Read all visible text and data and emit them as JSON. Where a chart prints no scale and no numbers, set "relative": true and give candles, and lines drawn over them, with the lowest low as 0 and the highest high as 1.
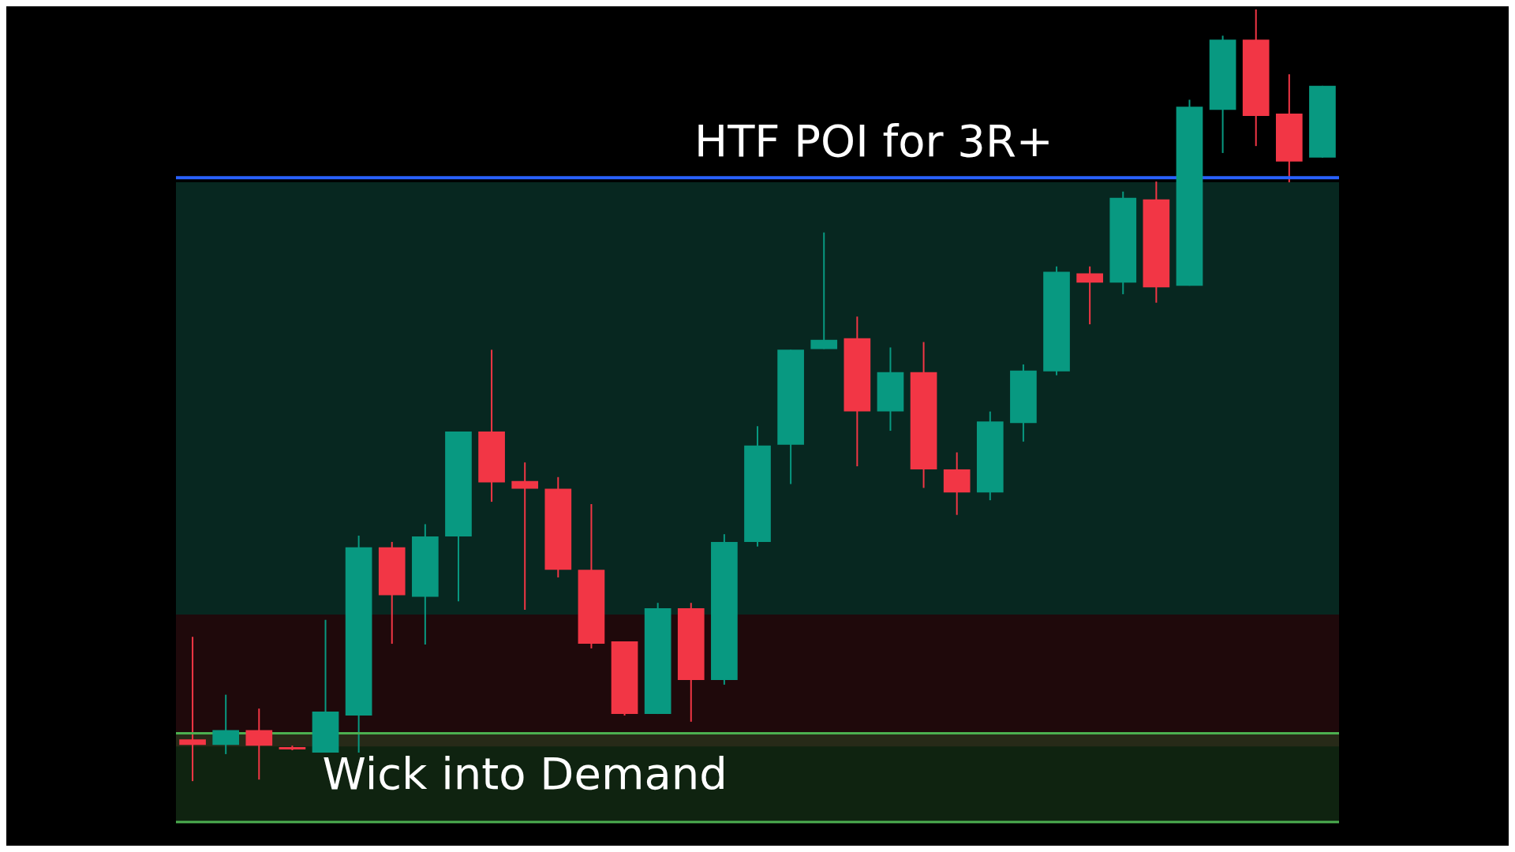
{
  "chart_data": {
    "type": "candlestick",
    "relative": true,
    "categories": [
      null,
      null,
      null,
      null,
      null,
      null,
      null,
      null,
      null,
      null,
      null,
      null,
      null,
      null,
      null,
      null,
      null,
      null,
      null,
      null,
      null,
      null,
      null,
      null,
      null,
      null,
      null,
      null,
      null,
      null,
      null,
      null,
      null,
      null,
      null
    ],
    "ohlc": [
      [
        0.054,
        0.187,
        0,
        0.047
      ],
      [
        0.047,
        0.112,
        0.035,
        0.066
      ],
      [
        0.066,
        0.094,
        0.002,
        0.046
      ],
      [
        0.044,
        0.046,
        0.04,
        0.041
      ],
      [
        0.037,
        0.209,
        0.037,
        0.09
      ],
      [
        0.085,
        0.318,
        0.037,
        0.303
      ],
      [
        0.303,
        0.31,
        0.178,
        0.241
      ],
      [
        0.239,
        0.333,
        0.177,
        0.317
      ],
      [
        0.317,
        0.453,
        0.233,
        0.453
      ],
      [
        0.453,
        0.559,
        0.362,
        0.387
      ],
      [
        0.389,
        0.413,
        0.222,
        0.379
      ],
      [
        0.379,
        0.394,
        0.264,
        0.274
      ],
      [
        0.274,
        0.359,
        0.172,
        0.178
      ],
      [
        0.181,
        0.181,
        0.085,
        0.087
      ],
      [
        0.087,
        0.231,
        0.087,
        0.224
      ],
      [
        0.224,
        0.231,
        0.077,
        0.131
      ],
      [
        0.131,
        0.32,
        0.125,
        0.31
      ],
      [
        0.31,
        0.46,
        0.304,
        0.435
      ],
      [
        0.436,
        0.559,
        0.385,
        0.559
      ],
      [
        0.56,
        0.711,
        0.56,
        0.572
      ],
      [
        0.574,
        0.602,
        0.408,
        0.479
      ],
      [
        0.479,
        0.562,
        0.454,
        0.53
      ],
      [
        0.53,
        0.569,
        0.38,
        0.404
      ],
      [
        0.404,
        0.426,
        0.345,
        0.374
      ],
      [
        0.374,
        0.479,
        0.364,
        0.466
      ],
      [
        0.464,
        0.54,
        0.44,
        0.532
      ],
      [
        0.531,
        0.667,
        0.526,
        0.66
      ],
      [
        0.658,
        0.667,
        0.592,
        0.646
      ],
      [
        0.646,
        0.764,
        0.631,
        0.756
      ],
      [
        0.754,
        0.777,
        0.62,
        0.64
      ],
      [
        0.642,
        0.883,
        0.642,
        0.874
      ],
      [
        0.87,
        0.966,
        0.814,
        0.961
      ],
      [
        0.961,
        1,
        0.823,
        0.862
      ],
      [
        0.865,
        0.916,
        0.776,
        0.803
      ],
      [
        0.808,
        0.901,
        0.808,
        0.901
      ]
    ],
    "colors": [
      "#f23645",
      "#089981",
      "#f23645",
      "#f23645",
      "#089981",
      "#089981",
      "#f23645",
      "#089981",
      "#089981",
      "#f23645",
      "#f23645",
      "#f23645",
      "#f23645",
      "#f23645",
      "#089981",
      "#f23645",
      "#089981",
      "#089981",
      "#089981",
      "#089981",
      "#f23645",
      "#089981",
      "#f23645",
      "#f23645",
      "#089981",
      "#089981",
      "#089981",
      "#f23645",
      "#089981",
      "#f23645",
      "#089981",
      "#089981",
      "#f23645",
      "#f23645",
      "#089981"
    ],
    "ref_lines": [
      {
        "axis": "y",
        "value": 0.782,
        "label": "HTF POI for 3R+",
        "color": "#2962ff"
      },
      {
        "axis": "y",
        "value": 0.062,
        "color": "#4caf50"
      },
      {
        "axis": "y",
        "value": -0.053,
        "color": "#4caf50"
      }
    ],
    "bands": [
      {
        "axis": "y",
        "from": 0.216,
        "to": 0.776,
        "color": "#0b3b30"
      },
      {
        "axis": "y",
        "from": 0.045,
        "to": 0.216,
        "color": "#2e0d10"
      },
      {
        "axis": "y",
        "from": -0.053,
        "to": 0.062,
        "label": "Wick into Demand",
        "color": "#4caf50"
      }
    ],
    "legend": false
  }
}
